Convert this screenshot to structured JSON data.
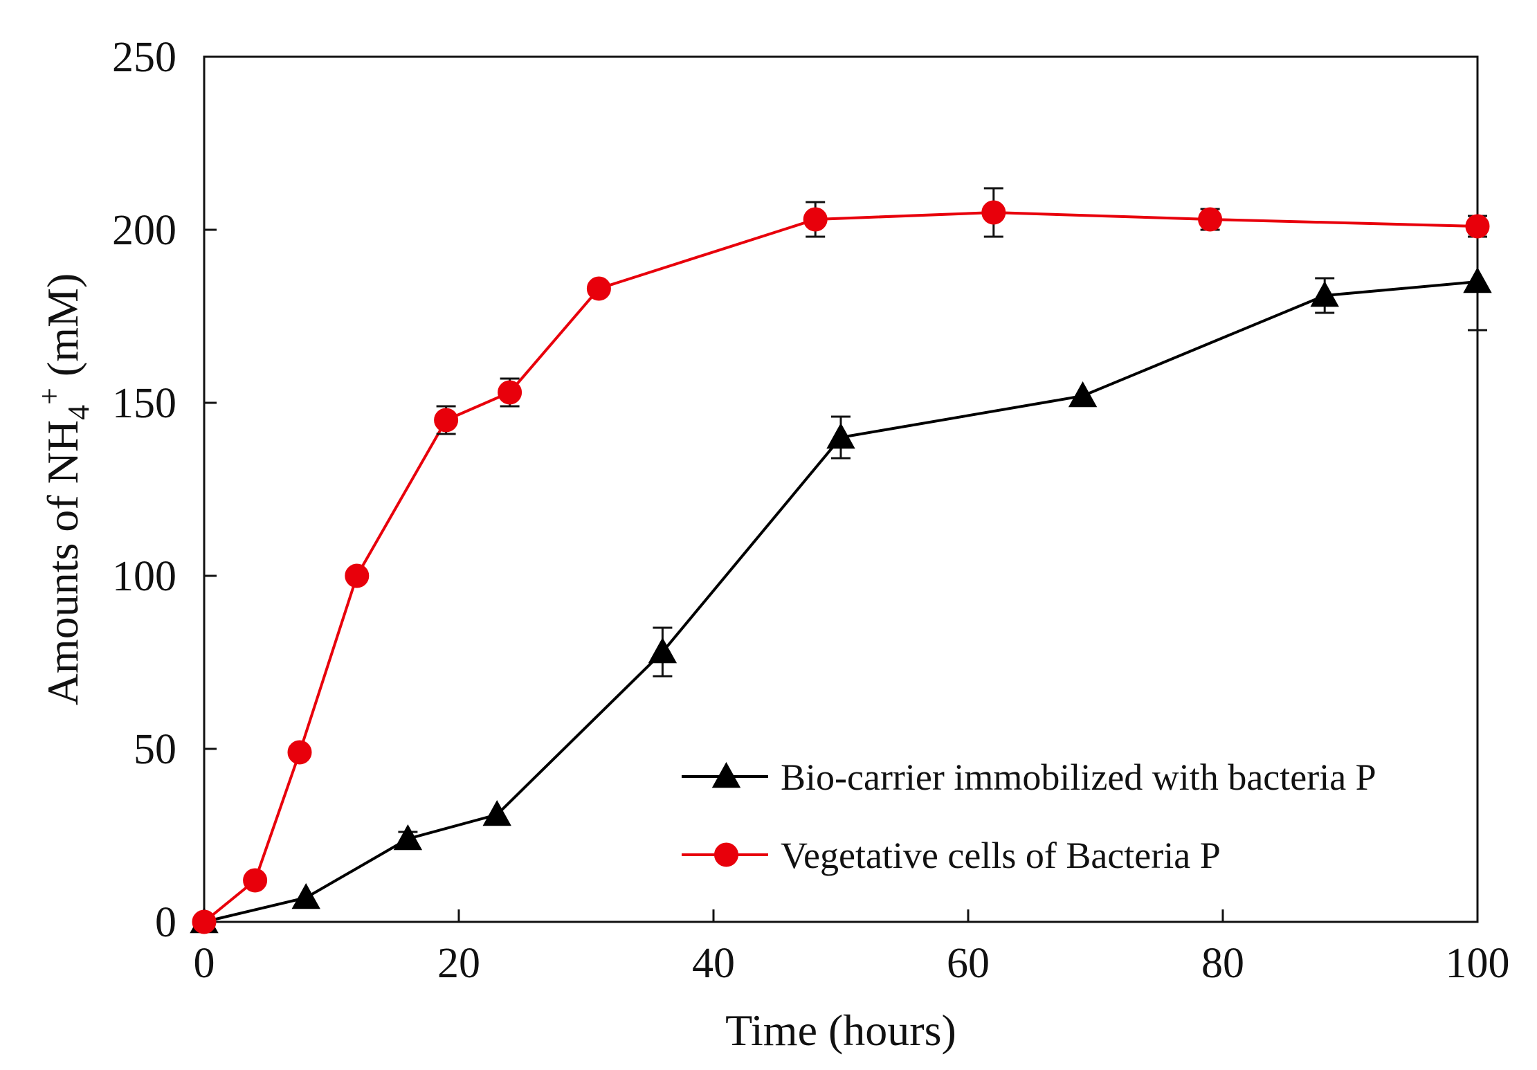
{
  "chart_data": {
    "type": "line",
    "title": "",
    "xlabel": "Time (hours)",
    "ylabel": {
      "prefix": "Amounts of NH",
      "subscript": "4",
      "superscript": "+",
      "suffix": " (mM)"
    },
    "xlim": [
      0,
      100
    ],
    "ylim": [
      0,
      250
    ],
    "x_ticks": [
      "0",
      "20",
      "40",
      "60",
      "80",
      "100"
    ],
    "y_ticks": [
      "0",
      "50",
      "100",
      "150",
      "200",
      "250"
    ],
    "grid": false,
    "legend_position": "bottom-right",
    "series": [
      {
        "name": "Bio-carrier immobilized with bacteria P",
        "color": "#000000",
        "marker": "triangle",
        "points": [
          {
            "x": 0,
            "y": 0,
            "err": 0
          },
          {
            "x": 8,
            "y": 7,
            "err": 0
          },
          {
            "x": 16,
            "y": 24,
            "err": 2
          },
          {
            "x": 23,
            "y": 31,
            "err": 0
          },
          {
            "x": 36,
            "y": 78,
            "err": 7
          },
          {
            "x": 50,
            "y": 140,
            "err": 6
          },
          {
            "x": 69,
            "y": 152,
            "err": 0
          },
          {
            "x": 88,
            "y": 181,
            "err": 5
          },
          {
            "x": 100,
            "y": 185,
            "err": 14
          }
        ]
      },
      {
        "name": "Vegetative cells of Bacteria P",
        "color": "#e8000b",
        "marker": "circle",
        "points": [
          {
            "x": 0,
            "y": 0,
            "err": 0
          },
          {
            "x": 4,
            "y": 12,
            "err": 0
          },
          {
            "x": 7.5,
            "y": 49,
            "err": 0
          },
          {
            "x": 12,
            "y": 100,
            "err": 0
          },
          {
            "x": 19,
            "y": 145,
            "err": 4
          },
          {
            "x": 24,
            "y": 153,
            "err": 4
          },
          {
            "x": 31,
            "y": 183,
            "err": 0
          },
          {
            "x": 48,
            "y": 203,
            "err": 5
          },
          {
            "x": 62,
            "y": 205,
            "err": 7
          },
          {
            "x": 79,
            "y": 203,
            "err": 3
          },
          {
            "x": 100,
            "y": 201,
            "err": 3
          }
        ]
      }
    ]
  }
}
